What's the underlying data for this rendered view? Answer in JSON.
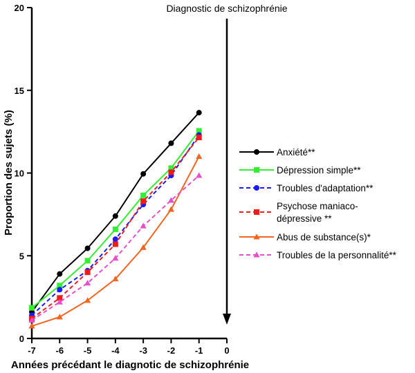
{
  "chart_data": {
    "type": "line",
    "title": "",
    "xlabel": "Années précédant le diagnotic de schizophrénie",
    "ylabel": "Proportion des sujets (%)",
    "xlim": [
      -7,
      0
    ],
    "ylim": [
      0,
      20
    ],
    "x_ticks": [
      "-7",
      "-6",
      "-5",
      "-4",
      "-3",
      "-2",
      "-1",
      "0"
    ],
    "y_ticks": [
      "0",
      "5",
      "10",
      "15",
      "20"
    ],
    "grid": false,
    "legend_position": "right",
    "annotation": {
      "text": "Diagnostic de schizophrénie",
      "x": 0,
      "arrow": "down"
    },
    "x": [
      -7,
      -6,
      -5,
      -4,
      -3,
      -2,
      -1
    ],
    "series": [
      {
        "name": "Anxiété**",
        "legend_lines": [
          "Anxiété**"
        ],
        "color": "#000000",
        "dash": "solid",
        "marker": "circle",
        "values": [
          1.6,
          3.9,
          5.45,
          7.4,
          9.95,
          11.8,
          13.65
        ]
      },
      {
        "name": "Dépression simple**",
        "legend_lines": [
          "Dépression simple**"
        ],
        "color": "#33ee33",
        "dash": "solid",
        "marker": "square",
        "values": [
          1.85,
          3.2,
          4.7,
          6.6,
          8.65,
          10.3,
          12.55
        ]
      },
      {
        "name": "Troubles d'adaptation**",
        "legend_lines": [
          "Troubles d'adaptation**"
        ],
        "color": "#1a1aff",
        "dash": "dashed",
        "marker": "circle",
        "values": [
          1.4,
          2.95,
          4.1,
          6.0,
          8.1,
          9.85,
          12.3
        ]
      },
      {
        "name": "Psychose maniaco-dépressive **",
        "legend_lines": [
          "Psychose maniaco-",
          "dépressive **"
        ],
        "color": "#ee1c1c",
        "dash": "dashed",
        "marker": "square",
        "values": [
          1.2,
          2.45,
          4.0,
          5.7,
          8.3,
          10.05,
          12.15
        ]
      },
      {
        "name": "Abus de substance(s)*",
        "legend_lines": [
          "Abus de substance(s)*"
        ],
        "color": "#f26522",
        "dash": "solid",
        "marker": "triangle",
        "values": [
          0.75,
          1.3,
          2.3,
          3.6,
          5.5,
          7.8,
          11.0
        ]
      },
      {
        "name": "Troubles de la personnalité**",
        "legend_lines": [
          "Troubles de la personnalité**"
        ],
        "color": "#e64fc8",
        "dash": "dashed",
        "marker": "triangle",
        "values": [
          1.1,
          2.2,
          3.35,
          4.85,
          6.8,
          8.35,
          9.85
        ]
      }
    ]
  }
}
